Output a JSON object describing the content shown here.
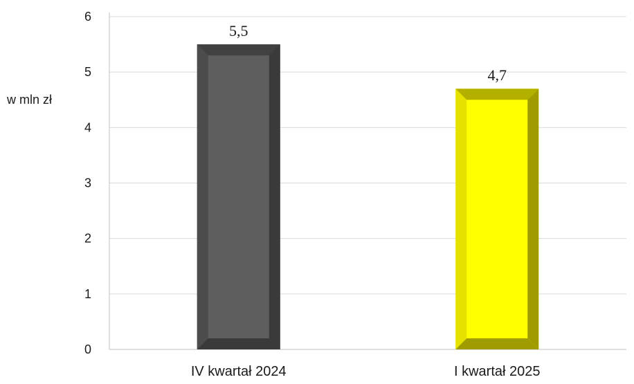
{
  "chart_data": {
    "type": "bar",
    "ylabel": "w mln zł",
    "ylim": [
      0,
      6
    ],
    "yticks": [
      0,
      1,
      2,
      3,
      4,
      5,
      6
    ],
    "grid": true,
    "categories": [
      "IV kwartał 2024",
      "I kwartał 2025"
    ],
    "values": [
      5.5,
      4.7
    ],
    "value_labels": [
      "5,5",
      "4,7"
    ],
    "bar_colors": [
      "#5e5e5e",
      "#ffff00"
    ],
    "bar_shade_colors": [
      "#3a3a3a",
      "#a09c00"
    ],
    "bar_light_colors": [
      "#4c4c4c",
      "#e6e200"
    ]
  }
}
